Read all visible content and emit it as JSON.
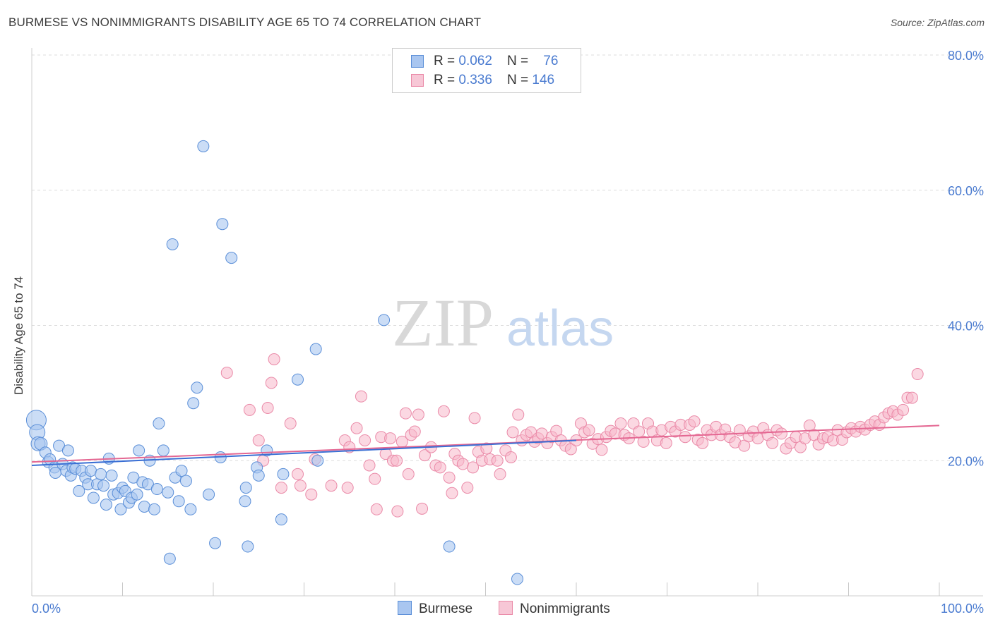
{
  "title": "BURMESE VS NONIMMIGRANTS DISABILITY AGE 65 TO 74 CORRELATION CHART",
  "source": "Source: ZipAtlas.com",
  "watermark": {
    "zip": "ZIP",
    "atlas": "atlas"
  },
  "legend": {
    "burmese": {
      "r_label": "R = ",
      "r_value": "0.062",
      "n_label": "N = ",
      "n_value": "76"
    },
    "nonimmigrants": {
      "r_label": "R = ",
      "r_value": "0.336",
      "n_label": "N = ",
      "n_value": "146"
    }
  },
  "colors": {
    "burmese_fill": "#a9c6f0",
    "burmese_stroke": "#5b8fd8",
    "burmese_line": "#3a6fd4",
    "nonimmigrants_fill": "#f7b8cb",
    "nonimmigrants_stroke": "#ea8aa8",
    "nonimmigrants_line": "#e46792",
    "axis_text": "#4a7bd0",
    "grid": "#dddddd"
  },
  "chart_data": {
    "type": "scatter",
    "title": "BURMESE VS NONIMMIGRANTS DISABILITY AGE 65 TO 74 CORRELATION CHART",
    "xlabel": "",
    "ylabel": "Disability Age 65 to 74",
    "xlim": [
      0,
      100
    ],
    "ylim": [
      0,
      80
    ],
    "x_tick_labels": [
      "0.0%",
      "100.0%"
    ],
    "y_ticks": [
      20,
      40,
      60,
      80
    ],
    "y_tick_labels": [
      "20.0%",
      "40.0%",
      "60.0%",
      "80.0%"
    ],
    "grid": true,
    "legend_position": "top-center",
    "series": [
      {
        "name": "Burmese",
        "trend": {
          "x": [
            0,
            60
          ],
          "y": [
            19.3,
            23.0
          ]
        },
        "points": [
          [
            0.5,
            26.0,
            14
          ],
          [
            0.6,
            24.2,
            11
          ],
          [
            0.7,
            22.5,
            10
          ],
          [
            1.0,
            22.5,
            9
          ],
          [
            1.5,
            21.2,
            8
          ],
          [
            1.8,
            19.8,
            8
          ],
          [
            2.0,
            20.2,
            8
          ],
          [
            2.5,
            19.0,
            8
          ],
          [
            2.6,
            18.2,
            8
          ],
          [
            3.0,
            22.2,
            8
          ],
          [
            3.4,
            19.5,
            8
          ],
          [
            3.8,
            18.5,
            8
          ],
          [
            4.0,
            21.5,
            8
          ],
          [
            4.3,
            17.8,
            8
          ],
          [
            4.5,
            19.0,
            8
          ],
          [
            4.8,
            18.8,
            8
          ],
          [
            5.2,
            15.5,
            8
          ],
          [
            5.5,
            18.5,
            8
          ],
          [
            5.9,
            17.5,
            8
          ],
          [
            6.2,
            16.5,
            8
          ],
          [
            6.5,
            18.5,
            8
          ],
          [
            6.8,
            14.5,
            8
          ],
          [
            7.2,
            16.5,
            8
          ],
          [
            7.6,
            18.0,
            8
          ],
          [
            7.9,
            16.3,
            8
          ],
          [
            8.2,
            13.5,
            8
          ],
          [
            8.5,
            20.3,
            8
          ],
          [
            8.8,
            17.8,
            8
          ],
          [
            9.0,
            15.0,
            8
          ],
          [
            9.5,
            15.2,
            8
          ],
          [
            9.8,
            12.8,
            8
          ],
          [
            10.0,
            16.0,
            8
          ],
          [
            10.3,
            15.5,
            8
          ],
          [
            10.7,
            13.8,
            8
          ],
          [
            11.0,
            14.5,
            8
          ],
          [
            11.2,
            17.5,
            8
          ],
          [
            11.6,
            15.0,
            8
          ],
          [
            11.8,
            21.5,
            8
          ],
          [
            12.2,
            16.8,
            8
          ],
          [
            12.4,
            13.2,
            8
          ],
          [
            12.8,
            16.5,
            8
          ],
          [
            13.0,
            20.0,
            8
          ],
          [
            13.5,
            12.8,
            8
          ],
          [
            13.8,
            15.8,
            8
          ],
          [
            14.0,
            25.5,
            8
          ],
          [
            14.5,
            21.5,
            8
          ],
          [
            15.0,
            15.3,
            8
          ],
          [
            15.2,
            5.5,
            8
          ],
          [
            15.5,
            52.0,
            8
          ],
          [
            15.8,
            17.5,
            8
          ],
          [
            16.2,
            14.0,
            8
          ],
          [
            16.5,
            18.5,
            8
          ],
          [
            17.0,
            17.0,
            8
          ],
          [
            17.5,
            12.8,
            8
          ],
          [
            17.8,
            28.5,
            8
          ],
          [
            18.2,
            30.8,
            8
          ],
          [
            18.9,
            66.5,
            8
          ],
          [
            19.5,
            15.0,
            8
          ],
          [
            20.2,
            7.8,
            8
          ],
          [
            20.8,
            20.5,
            8
          ],
          [
            21.0,
            55.0,
            8
          ],
          [
            22.0,
            50.0,
            8
          ],
          [
            23.5,
            14.0,
            8
          ],
          [
            23.6,
            16.0,
            8
          ],
          [
            23.8,
            7.3,
            8
          ],
          [
            24.8,
            19.0,
            8
          ],
          [
            25.0,
            17.8,
            8
          ],
          [
            25.9,
            21.5,
            8
          ],
          [
            27.5,
            11.3,
            8
          ],
          [
            27.7,
            18.0,
            8
          ],
          [
            29.3,
            32.0,
            8
          ],
          [
            31.3,
            36.5,
            8
          ],
          [
            31.5,
            20.0,
            8
          ],
          [
            38.8,
            40.8,
            8
          ],
          [
            46.0,
            7.3,
            8
          ],
          [
            53.5,
            2.5,
            8
          ]
        ]
      },
      {
        "name": "Nonimmigrants",
        "trend": {
          "x": [
            0,
            100
          ],
          "y": [
            19.8,
            25.2
          ]
        },
        "points": [
          [
            21.5,
            33.0
          ],
          [
            24.0,
            27.5
          ],
          [
            25.0,
            23.0
          ],
          [
            25.5,
            20.0
          ],
          [
            26.0,
            27.8
          ],
          [
            26.4,
            31.5
          ],
          [
            26.7,
            35.0
          ],
          [
            27.5,
            16.0
          ],
          [
            28.5,
            25.5
          ],
          [
            29.3,
            18.0
          ],
          [
            29.6,
            16.3
          ],
          [
            30.8,
            15.0
          ],
          [
            31.2,
            20.2
          ],
          [
            33.0,
            16.3
          ],
          [
            34.5,
            23.0
          ],
          [
            34.8,
            16.0
          ],
          [
            35.0,
            22.0
          ],
          [
            35.8,
            24.8
          ],
          [
            36.3,
            29.5
          ],
          [
            36.7,
            23.0
          ],
          [
            37.2,
            19.3
          ],
          [
            37.8,
            17.3
          ],
          [
            38.0,
            12.8
          ],
          [
            38.5,
            23.5
          ],
          [
            39.0,
            21.0
          ],
          [
            39.5,
            23.3
          ],
          [
            39.8,
            20.0
          ],
          [
            40.2,
            20.0
          ],
          [
            40.3,
            12.5
          ],
          [
            40.8,
            22.8
          ],
          [
            41.2,
            27.0
          ],
          [
            41.5,
            18.0
          ],
          [
            41.8,
            23.8
          ],
          [
            42.2,
            24.3
          ],
          [
            42.6,
            26.8
          ],
          [
            43.0,
            12.9
          ],
          [
            43.3,
            20.8
          ],
          [
            44.0,
            22.0
          ],
          [
            44.5,
            19.3
          ],
          [
            45.0,
            19.0
          ],
          [
            45.4,
            27.3
          ],
          [
            46.0,
            17.5
          ],
          [
            46.3,
            15.2
          ],
          [
            46.6,
            21.0
          ],
          [
            47.0,
            20.0
          ],
          [
            47.5,
            19.5
          ],
          [
            48.0,
            16.0
          ],
          [
            48.6,
            19.0
          ],
          [
            48.8,
            26.3
          ],
          [
            49.2,
            21.3
          ],
          [
            49.6,
            20.0
          ],
          [
            50.1,
            21.8
          ],
          [
            50.5,
            20.2
          ],
          [
            51.3,
            20.0
          ],
          [
            51.6,
            18.0
          ],
          [
            52.2,
            21.5
          ],
          [
            52.8,
            20.5
          ],
          [
            53.0,
            24.2
          ],
          [
            53.6,
            26.8
          ],
          [
            54.0,
            23.0
          ],
          [
            54.5,
            23.8
          ],
          [
            55.0,
            24.2
          ],
          [
            55.4,
            22.8
          ],
          [
            55.8,
            23.3
          ],
          [
            56.2,
            24.0
          ],
          [
            56.8,
            22.6
          ],
          [
            57.3,
            23.5
          ],
          [
            57.8,
            24.4
          ],
          [
            58.3,
            23.0
          ],
          [
            58.8,
            22.2
          ],
          [
            59.4,
            21.7
          ],
          [
            60.0,
            23.0
          ],
          [
            60.5,
            25.5
          ],
          [
            60.9,
            24.2
          ],
          [
            61.4,
            24.5
          ],
          [
            61.8,
            22.5
          ],
          [
            62.4,
            23.2
          ],
          [
            62.8,
            21.6
          ],
          [
            63.3,
            23.5
          ],
          [
            63.8,
            24.4
          ],
          [
            64.3,
            24.0
          ],
          [
            64.9,
            25.5
          ],
          [
            65.3,
            23.8
          ],
          [
            65.8,
            23.3
          ],
          [
            66.3,
            25.5
          ],
          [
            66.9,
            24.3
          ],
          [
            67.4,
            22.8
          ],
          [
            67.9,
            25.5
          ],
          [
            68.4,
            24.3
          ],
          [
            68.9,
            23.0
          ],
          [
            69.4,
            24.5
          ],
          [
            69.9,
            22.6
          ],
          [
            70.4,
            25.0
          ],
          [
            70.9,
            24.3
          ],
          [
            71.5,
            25.3
          ],
          [
            72.0,
            23.5
          ],
          [
            72.5,
            25.3
          ],
          [
            73.0,
            25.8
          ],
          [
            73.4,
            23.1
          ],
          [
            73.9,
            22.6
          ],
          [
            74.4,
            24.5
          ],
          [
            74.9,
            23.8
          ],
          [
            75.4,
            25.0
          ],
          [
            75.9,
            23.8
          ],
          [
            76.4,
            24.6
          ],
          [
            76.9,
            23.5
          ],
          [
            77.5,
            22.7
          ],
          [
            78.0,
            24.5
          ],
          [
            78.5,
            22.2
          ],
          [
            79.0,
            23.6
          ],
          [
            79.5,
            24.3
          ],
          [
            80.0,
            23.3
          ],
          [
            80.6,
            24.8
          ],
          [
            81.1,
            23.8
          ],
          [
            81.6,
            22.6
          ],
          [
            82.1,
            24.5
          ],
          [
            82.6,
            24.0
          ],
          [
            83.1,
            21.8
          ],
          [
            83.6,
            22.6
          ],
          [
            84.2,
            23.5
          ],
          [
            84.7,
            22.0
          ],
          [
            85.2,
            23.3
          ],
          [
            85.7,
            25.2
          ],
          [
            86.2,
            23.8
          ],
          [
            86.7,
            22.4
          ],
          [
            87.2,
            23.3
          ],
          [
            87.7,
            23.5
          ],
          [
            88.3,
            23.0
          ],
          [
            88.8,
            24.5
          ],
          [
            89.3,
            23.1
          ],
          [
            89.8,
            24.2
          ],
          [
            90.3,
            24.8
          ],
          [
            90.8,
            24.3
          ],
          [
            91.3,
            25.0
          ],
          [
            91.8,
            24.6
          ],
          [
            92.4,
            25.3
          ],
          [
            92.9,
            25.8
          ],
          [
            93.4,
            25.3
          ],
          [
            93.9,
            26.4
          ],
          [
            94.4,
            27.0
          ],
          [
            94.9,
            27.3
          ],
          [
            95.4,
            26.8
          ],
          [
            96.0,
            27.5
          ],
          [
            96.5,
            29.3
          ],
          [
            97.0,
            29.3
          ],
          [
            97.6,
            32.8
          ]
        ]
      }
    ]
  }
}
